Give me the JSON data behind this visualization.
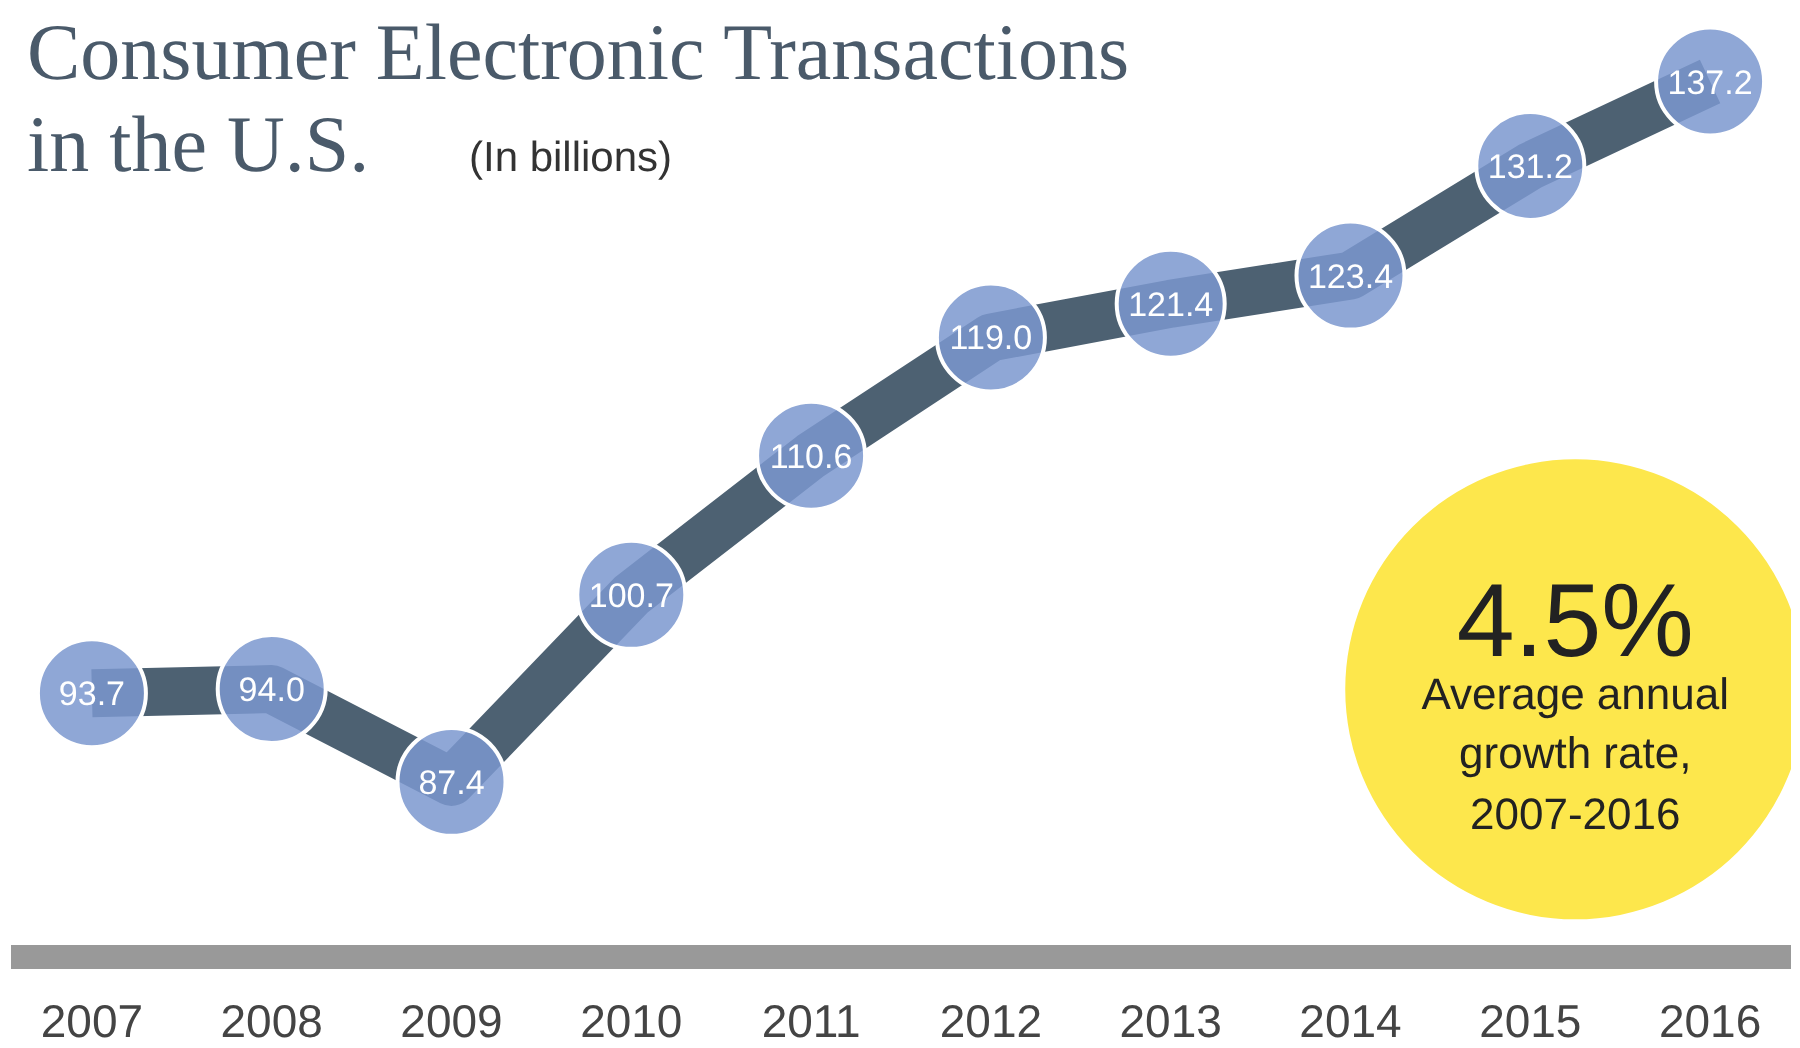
{
  "chart_data": {
    "type": "line",
    "title": "Consumer Electronic Transactions in the U.S.",
    "subtitle": "(In billions)",
    "categories": [
      "2007",
      "2008",
      "2009",
      "2010",
      "2011",
      "2012",
      "2013",
      "2014",
      "2015",
      "2016"
    ],
    "series": [
      {
        "color": "#4d6172",
        "values": [
          93.7,
          94.0,
          87.4,
          100.7,
          110.6,
          119.0,
          121.4,
          123.4,
          131.2,
          137.2
        ]
      },
      {
        "type": "scatter",
        "marker": "circle",
        "color": "#7b98cf",
        "values": [
          93.7,
          94.0,
          87.4,
          100.7,
          110.6,
          119.0,
          121.4,
          123.4,
          131.2,
          137.2
        ],
        "value_labels": [
          "93.7",
          "94.0",
          "87.4",
          "100.7",
          "110.6",
          "119.0",
          "121.4",
          "123.4",
          "131.2",
          "137.2"
        ]
      }
    ],
    "annotations": [
      "4.5%",
      "Average annual growth rate, 2007-2016"
    ],
    "grid": false
  }
}
